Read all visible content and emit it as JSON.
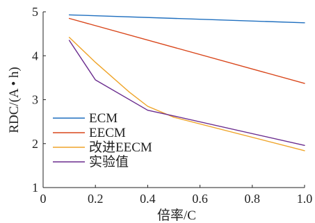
{
  "chart_data": {
    "type": "line",
    "xlabel": "倍率/C",
    "ylabel": "RDC/(A • h)",
    "xlim": [
      0,
      1.0
    ],
    "ylim": [
      1,
      5
    ],
    "x_ticks": [
      "0",
      "0.2",
      "0.4",
      "0.6",
      "0.8",
      "1.0"
    ],
    "y_ticks": [
      "1",
      "2",
      "3",
      "4",
      "5"
    ],
    "legend_position": "bottom-left",
    "grid": false,
    "series": [
      {
        "name": "ECM",
        "color": "#1f6fbf",
        "x": [
          0.1,
          1.0
        ],
        "y": [
          4.93,
          4.75
        ]
      },
      {
        "name": "EECM",
        "color": "#d9471c",
        "x": [
          0.1,
          1.0
        ],
        "y": [
          4.85,
          3.37
        ]
      },
      {
        "name": "改进EECM",
        "color": "#efa428",
        "x": [
          0.1,
          0.2,
          0.33,
          0.4,
          0.5,
          1.0
        ],
        "y": [
          4.42,
          3.85,
          3.17,
          2.85,
          2.6,
          1.84
        ]
      },
      {
        "name": "实验值",
        "color": "#6a2c8e",
        "x": [
          0.1,
          0.2,
          0.4,
          0.5,
          1.0
        ],
        "y": [
          4.35,
          3.45,
          2.76,
          2.63,
          1.96
        ]
      }
    ]
  }
}
